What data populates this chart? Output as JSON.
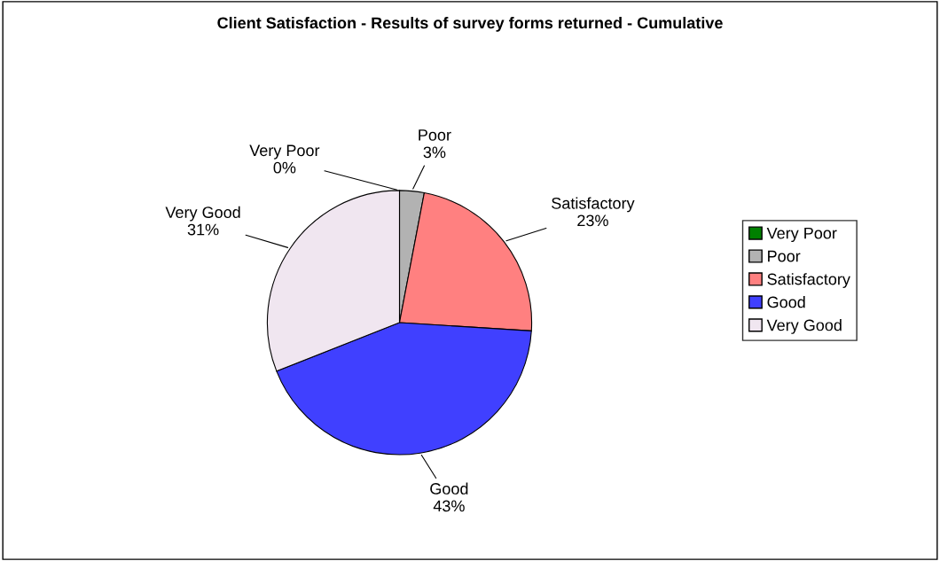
{
  "chart_data": {
    "type": "pie",
    "title": "Client Satisfaction - Results of survey forms returned - Cumulative",
    "categories": [
      "Very Poor",
      "Poor",
      "Satisfactory",
      "Good",
      "Very Good"
    ],
    "values": [
      0,
      3,
      23,
      43,
      31
    ],
    "value_labels": [
      "0%",
      "3%",
      "23%",
      "43%",
      "31%"
    ],
    "colors": [
      "#008000",
      "#b2b2b2",
      "#ff8080",
      "#4040ff",
      "#f0e6f0"
    ],
    "legend": "right"
  }
}
